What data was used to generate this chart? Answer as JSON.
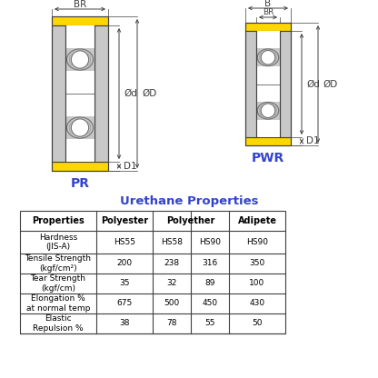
{
  "bg_color": "#ffffff",
  "yellow": "#FFD700",
  "gray_light": "#C8C8C8",
  "gray_mid": "#A0A0A0",
  "gray_dark": "#707070",
  "line_color": "#404040",
  "dim_color": "#404040",
  "label_color": "#3344CC",
  "table_title": "Urethane Properties",
  "table_title_color": "#3344CC",
  "pr_label": "PR",
  "pwr_label": "PWR",
  "table_rows": [
    [
      "Hardness\n(JIS-A)",
      "HS55",
      "HS58",
      "HS90",
      "HS90"
    ],
    [
      "Tensile Strength\n(kgf/cm²)",
      "200",
      "238",
      "316",
      "350"
    ],
    [
      "Tear Strength\n(kgf/cm)",
      "35",
      "32",
      "89",
      "100"
    ],
    [
      "Elongation %\nat normal temp",
      "675",
      "500",
      "450",
      "430"
    ],
    [
      "Elastic\nRepulsion %",
      "38",
      "78",
      "55",
      "50"
    ]
  ]
}
